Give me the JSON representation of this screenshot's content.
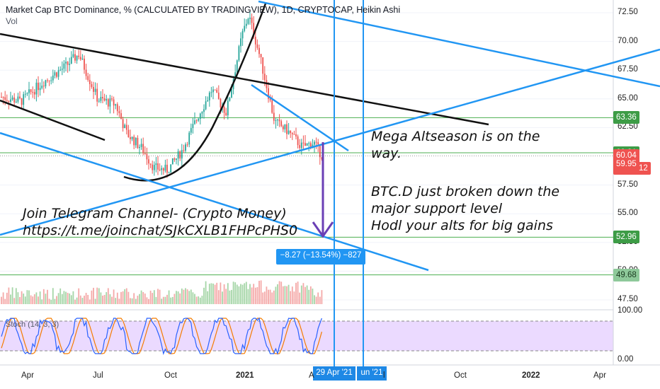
{
  "header": {
    "title": "Market Cap BTC Dominance, % (CALCULATED BY TRADINGVIEW), 1D, CRYPTOCAP, Heikin Ashi",
    "vol_label": "Vol"
  },
  "annotations": {
    "telegram_line1": "Join Telegram Channel-  (Crypto Money)",
    "telegram_line2": "https://t.me/joinchat/SJkCXLB1FHPcPHS0",
    "mega_line1": "Mega Altseason is on the",
    "mega_line2": "way.",
    "btcd_line1": "BTC.D just broken down the",
    "btcd_line2": "major support level",
    "btcd_line3": "Hodl your alts for big gains",
    "measure": "−8.27 (−13.54%) −827"
  },
  "price_axis": {
    "ticks": [
      "72.50",
      "70.00",
      "67.50",
      "65.00",
      "62.50",
      "57.50",
      "55.00",
      "52.50",
      "50.00",
      "47.50"
    ],
    "badges": [
      {
        "label": "63.36",
        "color": "#3d9c46"
      },
      {
        "label": "60.31",
        "color": "#3d9c46"
      },
      {
        "label": "60.04",
        "color": "#ef5350"
      },
      {
        "label": "10:59:12",
        "color": "#ef5350"
      },
      {
        "label": "59.95",
        "color": "#ef5350"
      },
      {
        "label": "52.96",
        "color": "#3d9c46"
      },
      {
        "label": "49.68",
        "color": "#8ec99a"
      }
    ]
  },
  "stoch_axis": {
    "label": "Stoch (14, 3, 3)",
    "ticks": [
      "100.00",
      "0.00"
    ]
  },
  "time_axis": {
    "ticks": [
      {
        "label": "Apr",
        "bold": false
      },
      {
        "label": "Jul",
        "bold": false
      },
      {
        "label": "Oct",
        "bold": false
      },
      {
        "label": "2021",
        "bold": true
      },
      {
        "label": "A",
        "bold": false
      },
      {
        "label": "l",
        "bold": false
      },
      {
        "label": "Oct",
        "bold": false
      },
      {
        "label": "2022",
        "bold": true
      },
      {
        "label": "Apr",
        "bold": false
      }
    ],
    "marker1": "29 Apr '21",
    "marker2": "un '21"
  },
  "colors": {
    "up": "#26a69a",
    "down": "#ef5350",
    "trend_blue": "#2196f3",
    "stoch_fill": "#e5ccff"
  },
  "chart_data": {
    "type": "candlestick",
    "symbol": "CRYPTOCAP:BTC.D",
    "timeframe": "1D",
    "style": "Heikin Ashi",
    "x_range": [
      "2020-02",
      "2022-05"
    ],
    "y_range": [
      46,
      73.5
    ],
    "last_close": 60.04,
    "horizontal_levels": [
      63.36,
      60.31,
      52.96,
      49.68
    ],
    "measure_target": {
      "from": 60.04,
      "change": -8.27,
      "change_pct": -13.54
    },
    "close_path": [
      [
        "2020-02-01",
        65.2
      ],
      [
        "2020-03-01",
        64.8
      ],
      [
        "2020-04-01",
        66.5
      ],
      [
        "2020-05-01",
        67.8
      ],
      [
        "2020-05-20",
        68.9
      ],
      [
        "2020-06-15",
        65.0
      ],
      [
        "2020-07-10",
        64.5
      ],
      [
        "2020-07-25",
        62.0
      ],
      [
        "2020-08-15",
        60.7
      ],
      [
        "2020-09-01",
        59.0
      ],
      [
        "2020-09-20",
        58.8
      ],
      [
        "2020-10-10",
        60.5
      ],
      [
        "2020-11-01",
        63.5
      ],
      [
        "2020-11-20",
        65.8
      ],
      [
        "2020-12-10",
        63.8
      ],
      [
        "2021-01-01",
        70.6
      ],
      [
        "2021-01-10",
        72.3
      ],
      [
        "2021-01-25",
        68.8
      ],
      [
        "2021-02-15",
        63.0
      ],
      [
        "2021-03-05",
        62.2
      ],
      [
        "2021-03-25",
        60.8
      ],
      [
        "2021-04-10",
        61.2
      ],
      [
        "2021-04-22",
        60.0
      ]
    ],
    "stoch": {
      "k_range": [
        0,
        100
      ],
      "upper_band": 80,
      "lower_band": 20
    }
  }
}
